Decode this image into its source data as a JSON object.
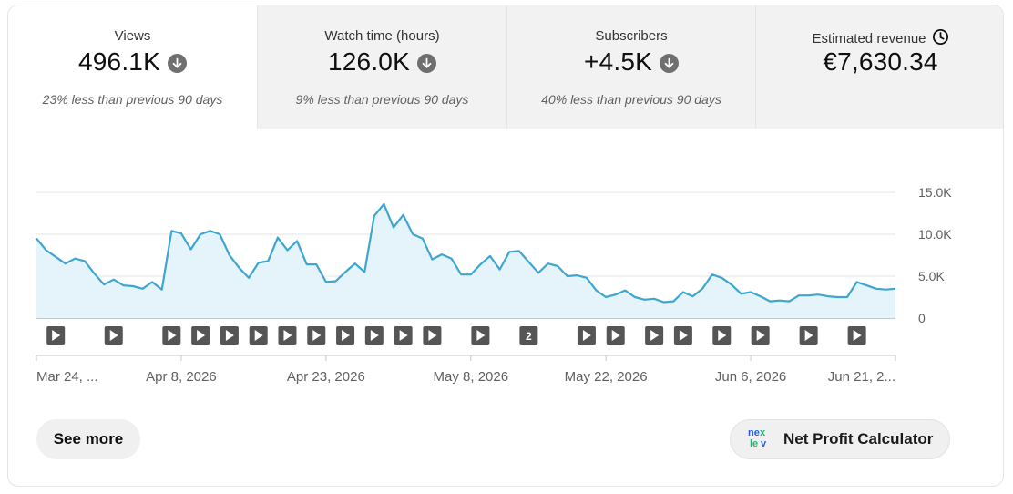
{
  "tabs": [
    {
      "title": "Views",
      "value": "496.1K",
      "trend_icon": "arrow-down-circle-icon",
      "subtitle": "23% less than previous 90 days",
      "active": true
    },
    {
      "title": "Watch time (hours)",
      "value": "126.0K",
      "trend_icon": "arrow-down-circle-icon",
      "subtitle": "9% less than previous 90 days",
      "active": false
    },
    {
      "title": "Subscribers",
      "value": "+4.5K",
      "trend_icon": "arrow-down-circle-icon",
      "subtitle": "40% less than previous 90 days",
      "active": false
    },
    {
      "title": "Estimated revenue",
      "value": "€7,630.34",
      "title_icon": "clock-icon",
      "active": false
    }
  ],
  "chart_data": {
    "type": "area",
    "y_ticks": [
      "15.0K",
      "10.0K",
      "5.0K",
      "0"
    ],
    "ylim": [
      0,
      15000
    ],
    "x_tick_labels": [
      "Mar 24, ...",
      "Apr 8, 2026",
      "Apr 23, 2026",
      "May 8, 2026",
      "May 22, 2026",
      "Jun 6, 2026",
      "Jun 21, 2..."
    ],
    "x_tick_days": [
      0,
      15,
      30,
      45,
      59,
      74,
      89
    ],
    "x_range_days": [
      0,
      89
    ],
    "values": [
      9500,
      8100,
      7300,
      6500,
      7100,
      6800,
      5300,
      4000,
      4600,
      3900,
      3800,
      3500,
      4300,
      3400,
      10400,
      10100,
      8200,
      10000,
      10400,
      10000,
      7500,
      6000,
      4800,
      6600,
      6800,
      9600,
      8100,
      9200,
      6400,
      6400,
      4300,
      4400,
      5500,
      6500,
      5500,
      12200,
      13600,
      10800,
      12300,
      10000,
      9500,
      7000,
      7600,
      7100,
      5200,
      5200,
      6400,
      7400,
      5800,
      7900,
      8000,
      6700,
      5400,
      6500,
      6200,
      5000,
      5100,
      4800,
      3300,
      2500,
      2800,
      3300,
      2500,
      2200,
      2300,
      1900,
      2000,
      3100,
      2600,
      3500,
      5200,
      4800,
      4000,
      2900,
      3100,
      2600,
      2000,
      2100,
      2000,
      2700,
      2700,
      2800,
      2600,
      2500,
      2500,
      4300,
      3900,
      3500,
      3400,
      3500
    ],
    "series_color": "#3ea6cf",
    "fill_color": "#e5f3fa",
    "video_markers": [
      {
        "day": 2,
        "label": ""
      },
      {
        "day": 8,
        "label": ""
      },
      {
        "day": 14,
        "label": ""
      },
      {
        "day": 17,
        "label": ""
      },
      {
        "day": 20,
        "label": ""
      },
      {
        "day": 23,
        "label": ""
      },
      {
        "day": 26,
        "label": ""
      },
      {
        "day": 29,
        "label": ""
      },
      {
        "day": 32,
        "label": ""
      },
      {
        "day": 35,
        "label": ""
      },
      {
        "day": 38,
        "label": ""
      },
      {
        "day": 41,
        "label": ""
      },
      {
        "day": 46,
        "label": ""
      },
      {
        "day": 51,
        "label": "2"
      },
      {
        "day": 57,
        "label": ""
      },
      {
        "day": 60,
        "label": ""
      },
      {
        "day": 64,
        "label": ""
      },
      {
        "day": 67,
        "label": ""
      },
      {
        "day": 71,
        "label": ""
      },
      {
        "day": 75,
        "label": ""
      },
      {
        "day": 80,
        "label": ""
      },
      {
        "day": 85,
        "label": ""
      }
    ]
  },
  "buttons": {
    "see_more": "See more",
    "net_profit": "Net Profit Calculator",
    "net_profit_logo_text": "nexlev"
  }
}
